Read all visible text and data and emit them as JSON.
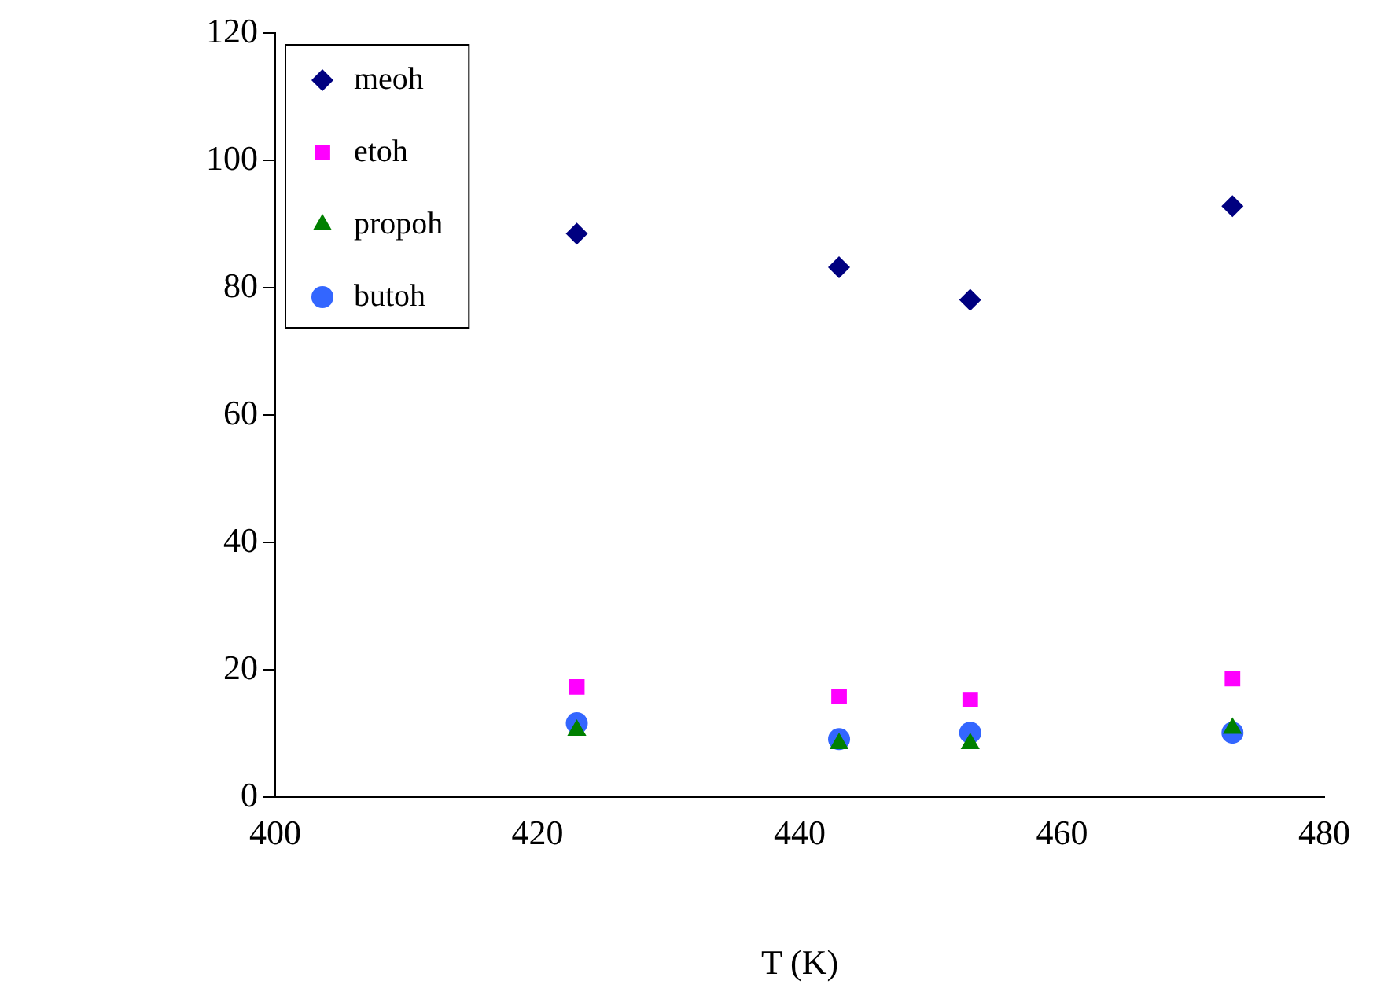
{
  "chart_data": {
    "type": "scatter",
    "xlabel": "T (K)",
    "x": [
      423,
      443,
      453,
      473
    ],
    "series": [
      {
        "name": "meoh",
        "color": "#000080",
        "marker": "diamond",
        "values": [
          88.5,
          83.2,
          78.1,
          92.8
        ]
      },
      {
        "name": "etoh",
        "color": "#ff00ff",
        "marker": "square",
        "values": [
          17.3,
          15.8,
          15.3,
          18.6
        ]
      },
      {
        "name": "propoh",
        "color": "#008000",
        "marker": "triangle",
        "values": [
          10.5,
          8.4,
          8.4,
          10.8
        ]
      },
      {
        "name": "butoh",
        "color": "#3366ff",
        "marker": "circle",
        "values": [
          11.6,
          9.1,
          10.1,
          10.1
        ]
      }
    ],
    "xlim": [
      400,
      480
    ],
    "xticks": [
      400,
      420,
      440,
      460,
      480
    ],
    "ylim": [
      0,
      120
    ],
    "yticks": [
      0,
      20,
      40,
      60,
      80,
      100,
      120
    ],
    "grid": false,
    "legend": "top left"
  }
}
